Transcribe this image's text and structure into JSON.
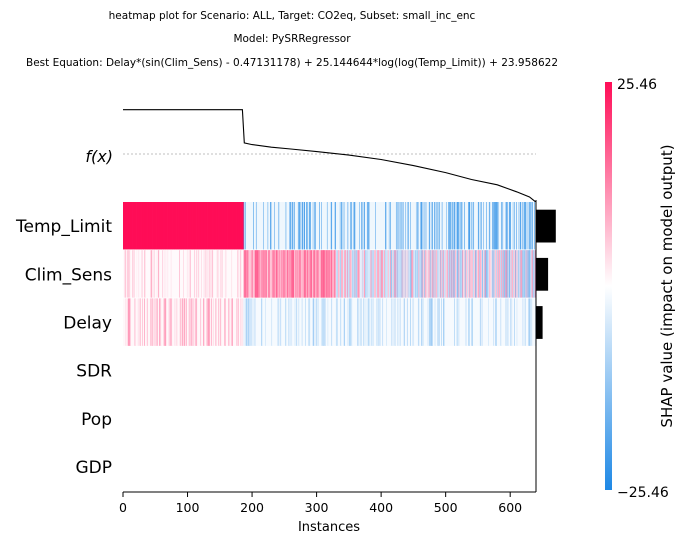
{
  "chart_data": {
    "type": "heatmap",
    "title_lines": [
      "heatmap plot for Scenario: ALL, Target: CO2eq, Subset: small_inc_enc",
      "Model: PySRRegressor",
      "Best Equation: Delay*(sin(Clim_Sens) - 0.47131178) + 25.144644*log(log(Temp_Limit)) + 23.958622"
    ],
    "xlabel": "Instances",
    "xlim": [
      0,
      640
    ],
    "xticks": [
      0,
      100,
      200,
      300,
      400,
      500,
      600
    ],
    "fx_label": "f(x)",
    "features": [
      "Temp_Limit",
      "Clim_Sens",
      "Delay",
      "SDR",
      "Pop",
      "GDP"
    ],
    "importance": [
      0.9,
      0.55,
      0.3,
      0,
      0,
      0
    ],
    "fx_curve": [
      [
        0,
        1.0
      ],
      [
        185,
        1.0
      ],
      [
        188,
        0.62
      ],
      [
        200,
        0.6
      ],
      [
        230,
        0.57
      ],
      [
        260,
        0.55
      ],
      [
        300,
        0.52
      ],
      [
        350,
        0.48
      ],
      [
        400,
        0.43
      ],
      [
        450,
        0.36
      ],
      [
        500,
        0.28
      ],
      [
        540,
        0.2
      ],
      [
        580,
        0.14
      ],
      [
        610,
        0.06
      ],
      [
        630,
        0.0
      ],
      [
        640,
        -0.06
      ]
    ],
    "colorbar": {
      "label": "SHAP value (impact on model output)",
      "vmax": 25.46,
      "vmin": -25.46,
      "max_label": "25.46",
      "min_label": "−25.46",
      "color_high": "#ff0d57",
      "color_mid": "#ffffff",
      "color_low": "#1e88e5"
    }
  }
}
